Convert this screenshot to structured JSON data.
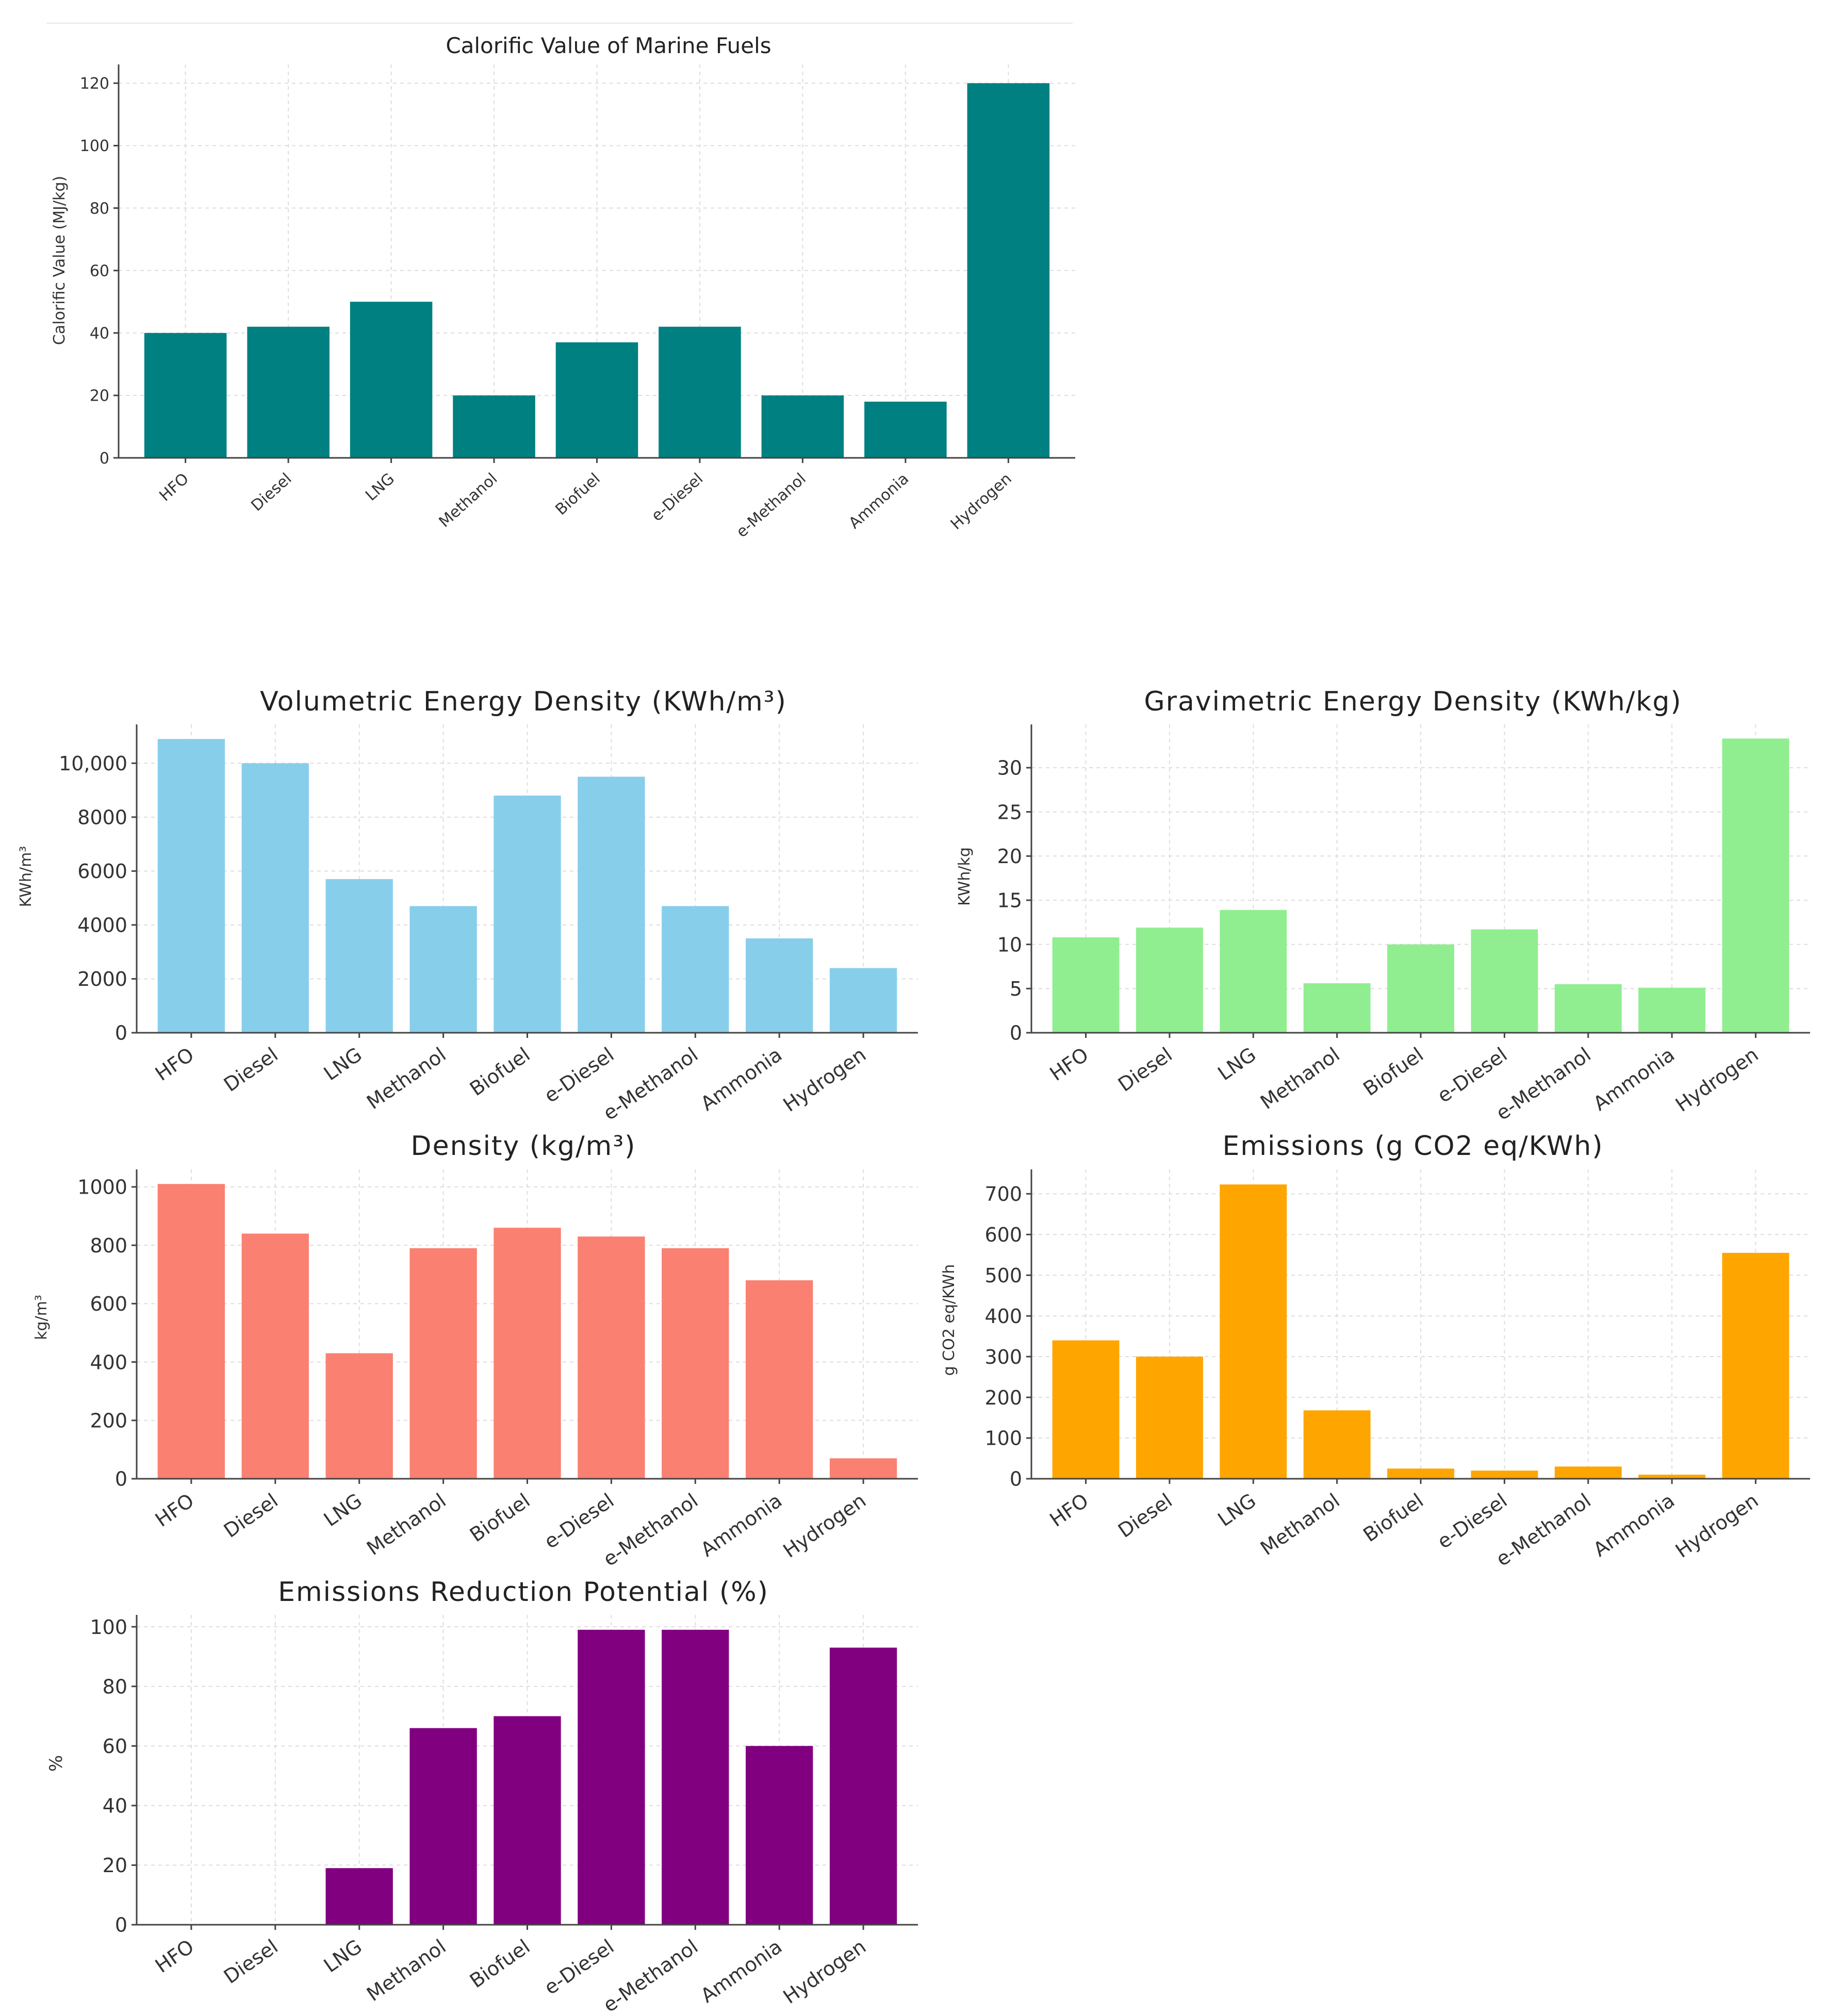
{
  "chart_data": [
    {
      "type": "bar",
      "title": "Calorific Value of Marine Fuels",
      "xlabel": "",
      "ylabel": "Calorific Value (MJ/kg)",
      "categories": [
        "HFO",
        "Diesel",
        "LNG",
        "Methanol",
        "Biofuel",
        "e-Diesel",
        "e-Methanol",
        "Ammonia",
        "Hydrogen"
      ],
      "values": [
        40,
        42,
        50,
        20,
        37,
        42,
        20,
        18,
        120
      ],
      "ylim": [
        0,
        126
      ],
      "yticks": [
        0,
        20,
        40,
        60,
        80,
        100,
        120
      ],
      "ytick_labels": [
        "0",
        "20",
        "40",
        "60",
        "80",
        "100",
        "120"
      ],
      "color": "#008080",
      "grid": true
    },
    {
      "type": "bar",
      "title": "Volumetric Energy Density (KWh/m³)",
      "xlabel": "",
      "ylabel": "KWh/m³",
      "categories": [
        "HFO",
        "Diesel",
        "LNG",
        "Methanol",
        "Biofuel",
        "e-Diesel",
        "e-Methanol",
        "Ammonia",
        "Hydrogen"
      ],
      "values": [
        10900,
        10000,
        5700,
        4700,
        8800,
        9500,
        4700,
        3500,
        2400
      ],
      "ylim": [
        0,
        11440
      ],
      "yticks": [
        0,
        2000,
        4000,
        6000,
        8000,
        10000
      ],
      "ytick_labels": [
        "0",
        "2000",
        "4000",
        "6000",
        "8000",
        "10,000"
      ],
      "color": "#87CEEB",
      "grid": true
    },
    {
      "type": "bar",
      "title": "Gravimetric Energy Density (KWh/kg)",
      "xlabel": "",
      "ylabel": "KWh/kg",
      "categories": [
        "HFO",
        "Diesel",
        "LNG",
        "Methanol",
        "Biofuel",
        "e-Diesel",
        "e-Methanol",
        "Ammonia",
        "Hydrogen"
      ],
      "values": [
        10.8,
        11.9,
        13.9,
        5.6,
        10,
        11.7,
        5.5,
        5.1,
        33.3
      ],
      "ylim": [
        0,
        34.9
      ],
      "yticks": [
        0,
        5,
        10,
        15,
        20,
        25,
        30
      ],
      "ytick_labels": [
        "0",
        "5",
        "10",
        "15",
        "20",
        "25",
        "30"
      ],
      "color": "#90EE90",
      "grid": true
    },
    {
      "type": "bar",
      "title": "Density (kg/m³)",
      "xlabel": "",
      "ylabel": "kg/m³",
      "categories": [
        "HFO",
        "Diesel",
        "LNG",
        "Methanol",
        "Biofuel",
        "e-Diesel",
        "e-Methanol",
        "Ammonia",
        "Hydrogen"
      ],
      "values": [
        1010,
        840,
        430,
        790,
        860,
        830,
        790,
        680,
        70
      ],
      "ylim": [
        0,
        1060
      ],
      "yticks": [
        0,
        200,
        400,
        600,
        800,
        1000
      ],
      "ytick_labels": [
        "0",
        "200",
        "400",
        "600",
        "800",
        "1000"
      ],
      "color": "#FA8072",
      "grid": true
    },
    {
      "type": "bar",
      "title": "Emissions (g CO2 eq/KWh)",
      "xlabel": "",
      "ylabel": "g CO2 eq/KWh",
      "categories": [
        "HFO",
        "Diesel",
        "LNG",
        "Methanol",
        "Biofuel",
        "e-Diesel",
        "e-Methanol",
        "Ammonia",
        "Hydrogen"
      ],
      "values": [
        340,
        300,
        723,
        168,
        25,
        20,
        30,
        10,
        555
      ],
      "ylim": [
        0,
        760
      ],
      "yticks": [
        0,
        100,
        200,
        300,
        400,
        500,
        600,
        700
      ],
      "ytick_labels": [
        "0",
        "100",
        "200",
        "300",
        "400",
        "500",
        "600",
        "700"
      ],
      "color": "#FFA500",
      "grid": true
    },
    {
      "type": "bar",
      "title": "Emissions Reduction Potential (%)",
      "xlabel": "",
      "ylabel": "%",
      "categories": [
        "HFO",
        "Diesel",
        "LNG",
        "Methanol",
        "Biofuel",
        "e-Diesel",
        "e-Methanol",
        "Ammonia",
        "Hydrogen"
      ],
      "values": [
        0,
        0,
        19,
        66,
        70,
        99,
        99,
        60,
        93
      ],
      "ylim": [
        0,
        104
      ],
      "yticks": [
        0,
        20,
        40,
        60,
        80,
        100
      ],
      "ytick_labels": [
        "0",
        "20",
        "40",
        "60",
        "80",
        "100"
      ],
      "color": "#800080",
      "grid": true
    }
  ]
}
